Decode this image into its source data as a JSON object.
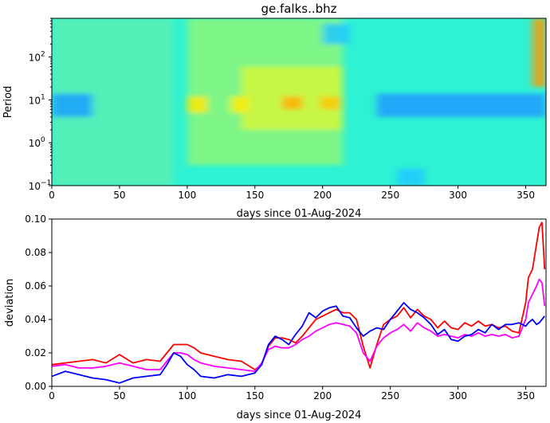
{
  "figure_title": "ge.falks..bhz",
  "chart_data": [
    {
      "type": "heatmap",
      "title": "ge.falks..bhz",
      "xlabel": "days since 01-Aug-2024",
      "ylabel": "Period",
      "xlim": [
        0,
        365
      ],
      "ylim": [
        0.1,
        800
      ],
      "yscale": "log",
      "x_ticks": [
        0,
        50,
        100,
        150,
        200,
        250,
        300,
        350
      ],
      "x_tick_labels": [
        "0",
        "50",
        "100",
        "150",
        "200",
        "250",
        "300",
        "350"
      ],
      "y_ticks": [
        0.1,
        1,
        10,
        100
      ],
      "y_tick_labels": [
        "10",
        "10",
        "10",
        "10"
      ],
      "y_tick_exponents": [
        "−1",
        "0",
        "1",
        "2"
      ],
      "colormap": "jet",
      "background_color": "#2ef2d4",
      "features": [
        {
          "x": [
            0,
            90
          ],
          "period": [
            0.1,
            800
          ],
          "color": "#5af0b4",
          "level": 0.45
        },
        {
          "x": [
            100,
            215
          ],
          "period": [
            0.3,
            800
          ],
          "color": "#8cf77a",
          "level": 0.58
        },
        {
          "x": [
            140,
            215
          ],
          "period": [
            2,
            60
          ],
          "color": "#d4f83c",
          "level": 0.72
        },
        {
          "x": [
            0,
            30
          ],
          "period": [
            4,
            14
          ],
          "color": "#1aa0ff",
          "level": 0.3
        },
        {
          "x": [
            240,
            365
          ],
          "period": [
            4,
            14
          ],
          "color": "#1e9cff",
          "level": 0.3
        },
        {
          "x": [
            100,
            115
          ],
          "period": [
            5,
            12
          ],
          "color": "#ffe900",
          "level": 0.78
        },
        {
          "x": [
            132,
            145
          ],
          "period": [
            5,
            12
          ],
          "color": "#ffee00",
          "level": 0.8
        },
        {
          "x": [
            170,
            185
          ],
          "period": [
            6,
            12
          ],
          "color": "#ffb000",
          "level": 0.86
        },
        {
          "x": [
            198,
            213
          ],
          "period": [
            6,
            12
          ],
          "color": "#ffc800",
          "level": 0.84
        },
        {
          "x": [
            355,
            365
          ],
          "period": [
            20,
            800
          ],
          "color": "#ff9a00",
          "level": 0.88
        },
        {
          "x": [
            200,
            220
          ],
          "period": [
            200,
            600
          ],
          "color": "#22c8ff",
          "level": 0.35
        },
        {
          "x": [
            255,
            275
          ],
          "period": [
            0.1,
            0.25
          ],
          "color": "#20c8ff",
          "level": 0.35
        }
      ]
    },
    {
      "type": "line",
      "xlabel": "days since 01-Aug-2024",
      "ylabel": "deviation",
      "xlim": [
        0,
        365
      ],
      "ylim": [
        0,
        0.1
      ],
      "x_ticks": [
        0,
        50,
        100,
        150,
        200,
        250,
        300,
        350
      ],
      "x_tick_labels": [
        "0",
        "50",
        "100",
        "150",
        "200",
        "250",
        "300",
        "350"
      ],
      "y_ticks": [
        0,
        0.02,
        0.04,
        0.06,
        0.08,
        0.1
      ],
      "y_tick_labels": [
        "0.00",
        "0.02",
        "0.04",
        "0.06",
        "0.08",
        "0.10"
      ],
      "x": [
        0,
        10,
        20,
        30,
        40,
        50,
        60,
        70,
        80,
        85,
        90,
        95,
        100,
        105,
        110,
        120,
        130,
        140,
        150,
        155,
        160,
        165,
        170,
        175,
        180,
        185,
        190,
        195,
        200,
        205,
        210,
        215,
        220,
        225,
        230,
        235,
        240,
        245,
        250,
        255,
        260,
        265,
        270,
        275,
        280,
        285,
        290,
        295,
        300,
        305,
        310,
        315,
        320,
        325,
        330,
        335,
        340,
        345,
        350,
        352,
        355,
        358,
        360,
        362,
        364
      ],
      "series": [
        {
          "color": "#ff0000",
          "values": [
            0.013,
            0.014,
            0.015,
            0.016,
            0.014,
            0.019,
            0.014,
            0.016,
            0.015,
            0.02,
            0.025,
            0.025,
            0.025,
            0.023,
            0.02,
            0.018,
            0.016,
            0.015,
            0.01,
            0.013,
            0.024,
            0.029,
            0.029,
            0.028,
            0.026,
            0.03,
            0.035,
            0.04,
            0.042,
            0.044,
            0.046,
            0.044,
            0.044,
            0.04,
            0.024,
            0.011,
            0.025,
            0.037,
            0.04,
            0.042,
            0.047,
            0.041,
            0.046,
            0.042,
            0.04,
            0.035,
            0.039,
            0.035,
            0.034,
            0.038,
            0.036,
            0.039,
            0.036,
            0.037,
            0.035,
            0.036,
            0.033,
            0.032,
            0.05,
            0.065,
            0.07,
            0.085,
            0.095,
            0.098,
            0.07
          ]
        },
        {
          "color": "#ff00ff",
          "values": [
            0.012,
            0.013,
            0.011,
            0.011,
            0.012,
            0.014,
            0.012,
            0.01,
            0.01,
            0.015,
            0.02,
            0.02,
            0.019,
            0.016,
            0.014,
            0.012,
            0.011,
            0.01,
            0.009,
            0.014,
            0.022,
            0.024,
            0.023,
            0.023,
            0.025,
            0.028,
            0.03,
            0.033,
            0.035,
            0.037,
            0.038,
            0.037,
            0.036,
            0.032,
            0.02,
            0.015,
            0.024,
            0.029,
            0.032,
            0.034,
            0.037,
            0.033,
            0.038,
            0.035,
            0.033,
            0.03,
            0.031,
            0.03,
            0.029,
            0.031,
            0.03,
            0.032,
            0.03,
            0.031,
            0.03,
            0.031,
            0.029,
            0.03,
            0.04,
            0.05,
            0.055,
            0.06,
            0.064,
            0.062,
            0.048
          ]
        },
        {
          "color": "#0000ff",
          "values": [
            0.006,
            0.009,
            0.007,
            0.005,
            0.004,
            0.002,
            0.005,
            0.006,
            0.007,
            0.013,
            0.02,
            0.018,
            0.013,
            0.01,
            0.006,
            0.005,
            0.007,
            0.006,
            0.008,
            0.013,
            0.025,
            0.03,
            0.028,
            0.025,
            0.031,
            0.036,
            0.044,
            0.041,
            0.045,
            0.047,
            0.048,
            0.042,
            0.041,
            0.035,
            0.03,
            0.033,
            0.035,
            0.034,
            0.04,
            0.045,
            0.05,
            0.046,
            0.044,
            0.041,
            0.037,
            0.031,
            0.034,
            0.028,
            0.027,
            0.03,
            0.031,
            0.034,
            0.032,
            0.037,
            0.034,
            0.037,
            0.037,
            0.038,
            0.036,
            0.038,
            0.04,
            0.037,
            0.038,
            0.04,
            0.042
          ]
        }
      ]
    }
  ]
}
